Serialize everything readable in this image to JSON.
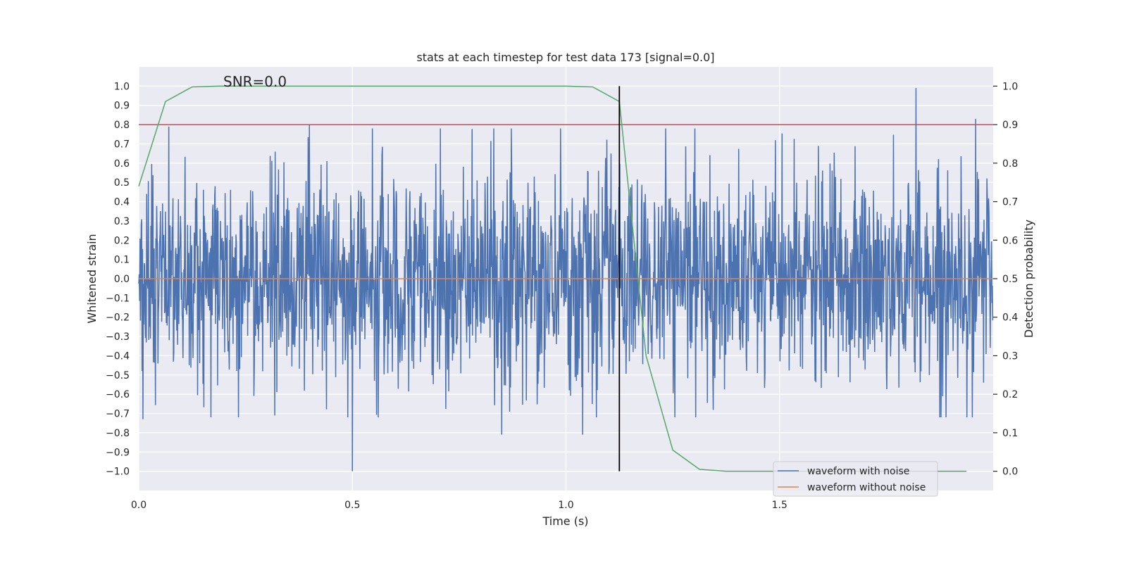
{
  "chart_data": {
    "type": "line",
    "title": "stats at each timestep for test data 173 [signal=0.0]",
    "xlabel": "Time (s)",
    "ylabel_left": "Whitened strain",
    "ylabel_right": "Detection probability",
    "annotation": "SNR=0.0",
    "xlim": [
      0.0,
      2.0
    ],
    "ylim_left": [
      -1.1,
      1.1
    ],
    "ylim_right": [
      -0.05,
      1.05
    ],
    "x_ticks": [
      0.0,
      0.5,
      1.0,
      1.5
    ],
    "x_tick_labels": [
      "0.0",
      "0.5",
      "1.0",
      "1.5"
    ],
    "y_ticks_left": [
      1.0,
      0.9,
      0.8,
      0.7,
      0.6,
      0.5,
      0.4,
      0.3,
      0.2,
      0.1,
      0.0,
      -0.1,
      -0.2,
      -0.3,
      -0.4,
      -0.5,
      -0.6,
      -0.7,
      -0.8,
      -0.9,
      -1.0
    ],
    "y_tick_labels_left": [
      "1.0",
      "0.9",
      "0.8",
      "0.7",
      "0.6",
      "0.5",
      "0.4",
      "0.3",
      "0.2",
      "0.1",
      "0.0",
      "−0.1",
      "−0.2",
      "−0.3",
      "−0.4",
      "−0.5",
      "−0.6",
      "−0.7",
      "−0.8",
      "−0.9",
      "−1.0"
    ],
    "y_ticks_right": [
      1.0,
      0.9,
      0.8,
      0.7,
      0.6,
      0.5,
      0.4,
      0.3,
      0.2,
      0.1,
      0.0
    ],
    "y_tick_labels_right": [
      "1.0",
      "0.9",
      "0.8",
      "0.7",
      "0.6",
      "0.5",
      "0.4",
      "0.3",
      "0.2",
      "0.1",
      "0.0"
    ],
    "series": [
      {
        "name": "waveform with noise",
        "axis": "left",
        "color": "#4c72b0",
        "kind": "noise",
        "x_range": [
          0.0,
          2.0
        ],
        "samples": 2048,
        "approx_std": 0.27,
        "peaks": [
          {
            "x": 0.5,
            "y": -1.0
          },
          {
            "x": 1.82,
            "y": 0.99
          },
          {
            "x": 0.4,
            "y": 0.8
          },
          {
            "x": 0.07,
            "y": 0.79
          },
          {
            "x": 0.85,
            "y": -0.81
          },
          {
            "x": 1.04,
            "y": -0.81
          },
          {
            "x": 1.96,
            "y": 0.83
          },
          {
            "x": 0.01,
            "y": -0.73
          }
        ]
      },
      {
        "name": "waveform without noise",
        "axis": "left",
        "color": "#dd8452",
        "x": [
          0.0,
          2.0
        ],
        "y": [
          0.0,
          0.0
        ]
      },
      {
        "name": "detection probability",
        "axis": "right",
        "color": "#55a868",
        "x": [
          0.0,
          0.0625,
          0.125,
          0.1875,
          0.25,
          0.5,
          0.75,
          1.0,
          1.0625,
          1.125,
          1.1875,
          1.25,
          1.3125,
          1.375,
          1.4375,
          1.5,
          1.75,
          1.9375
        ],
        "y": [
          0.74,
          0.96,
          0.998,
          1.0,
          1.0,
          1.0,
          1.0,
          1.0,
          0.998,
          0.96,
          0.3,
          0.055,
          0.005,
          0.0,
          0.0,
          0.0,
          0.0,
          0.0
        ]
      }
    ],
    "threshold": {
      "axis": "right",
      "value": 0.9,
      "color": "#c44e52"
    },
    "vline": {
      "x": 1.125,
      "ymin": -1.0,
      "ymax": 1.0,
      "color": "#000000"
    },
    "legend": {
      "position": "lower-right",
      "entries": [
        {
          "label": "waveform with noise",
          "color": "#4c72b0"
        },
        {
          "label": "waveform without noise",
          "color": "#dd8452"
        }
      ]
    },
    "colors": {
      "plot_bg": "#eaeaf2",
      "grid": "#ffffff",
      "text": "#262626"
    }
  }
}
